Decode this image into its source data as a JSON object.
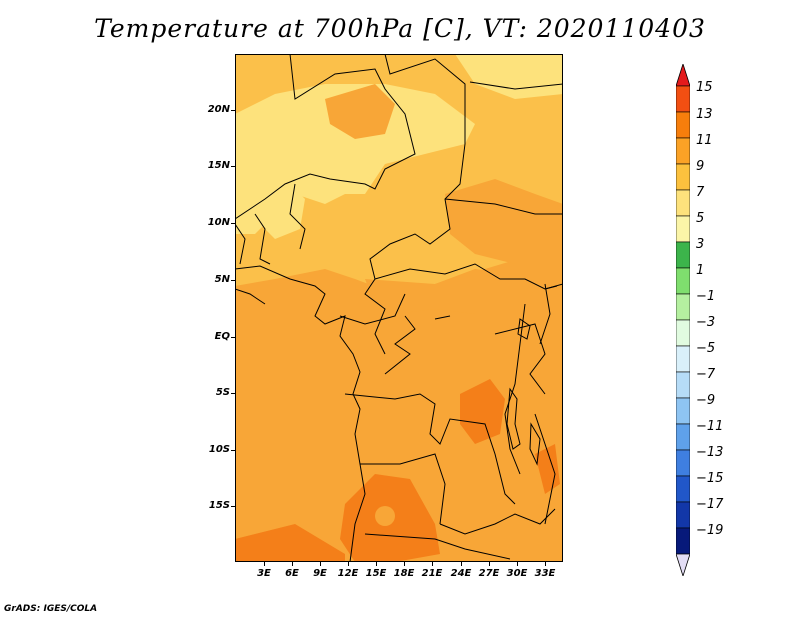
{
  "title": "Temperature at 700hPa [C], VT: 2020110403",
  "credit": "GrADS: IGES/COLA",
  "lat_labels": [
    "20N",
    "15N",
    "10N",
    "5N",
    "EQ",
    "5S",
    "10S",
    "15S"
  ],
  "lon_labels": [
    "3E",
    "6E",
    "9E",
    "12E",
    "15E",
    "18E",
    "21E",
    "24E",
    "27E",
    "30E",
    "33E"
  ],
  "colorbar": {
    "levels": [
      "15",
      "13",
      "11",
      "9",
      "7",
      "5",
      "3",
      "1",
      "−1",
      "−3",
      "−5",
      "−7",
      "−9",
      "−11",
      "−13",
      "−15",
      "−17",
      "−19"
    ],
    "colors": [
      "#e41a1c",
      "#f24f12",
      "#f77e0c",
      "#fba226",
      "#fcc13e",
      "#fde27c",
      "#fbf5a8",
      "#3cb44b",
      "#7fde6e",
      "#b5f0a0",
      "#e1fbe0",
      "#d9f0fa",
      "#b6dcf7",
      "#8ec4f2",
      "#5fa1ea",
      "#3f7fe0",
      "#2157c9",
      "#1237a8",
      "#07197a",
      "#e3ddf5"
    ]
  },
  "map_colors": {
    "background_band": "#f8a637",
    "warm_band": "#fbc04a",
    "cool_band": "#fde27c",
    "hot_band": "#f47f19"
  }
}
